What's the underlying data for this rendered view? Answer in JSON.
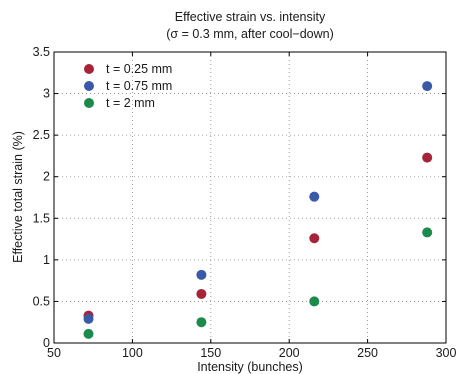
{
  "chart_data": {
    "type": "scatter",
    "title": "Effective strain vs. intensity",
    "subtitle": "(σ = 0.3 mm, after cool−down)",
    "xlabel": "Intensity (bunches)",
    "ylabel": "Effective total strain (%)",
    "xlim": [
      50,
      300
    ],
    "ylim": [
      0,
      3.5
    ],
    "xticks": [
      "50",
      "100",
      "150",
      "200",
      "250",
      "300"
    ],
    "yticks": [
      "0",
      "0.5",
      "1",
      "1.5",
      "2",
      "2.5",
      "3",
      "3.5"
    ],
    "grid": true,
    "legend_position": "top-left",
    "series": [
      {
        "name": "t = 0.25 mm",
        "color": "#a6243a",
        "x": [
          72,
          144,
          216,
          288
        ],
        "y": [
          0.33,
          0.59,
          1.26,
          2.23
        ]
      },
      {
        "name": "t = 0.75 mm",
        "color": "#3a5aa8",
        "x": [
          72,
          144,
          216,
          288
        ],
        "y": [
          0.29,
          0.82,
          1.76,
          3.09
        ]
      },
      {
        "name": "t = 2 mm",
        "color": "#1c8a4a",
        "x": [
          72,
          144,
          216,
          288
        ],
        "y": [
          0.11,
          0.25,
          0.5,
          1.33
        ]
      }
    ]
  }
}
